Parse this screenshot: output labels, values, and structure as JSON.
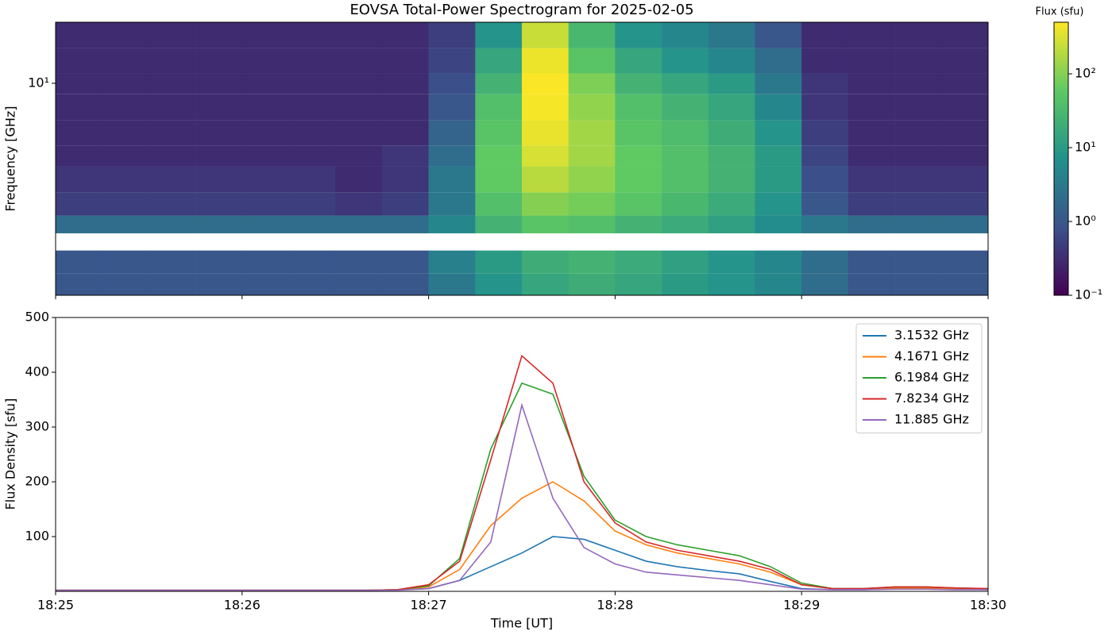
{
  "chart_data": [
    {
      "type": "heatmap",
      "title": "EOVSA Total-Power Spectrogram for 2025-02-05",
      "y_label": "Frequency [GHz]",
      "log_y": true,
      "colormap": "viridis",
      "xlim": [
        "18:25",
        "18:30"
      ],
      "ylim": [
        1.3,
        18
      ],
      "yticks": [
        {
          "value": 10,
          "label": "10¹"
        }
      ],
      "x_bins": [
        "18:25:00",
        "18:25:15",
        "18:25:30",
        "18:25:45",
        "18:26:00",
        "18:26:15",
        "18:26:30",
        "18:26:45",
        "18:27:00",
        "18:27:15",
        "18:27:30",
        "18:27:45",
        "18:28:00",
        "18:28:15",
        "18:28:30",
        "18:28:45",
        "18:29:00",
        "18:29:15",
        "18:29:30",
        "18:29:45",
        "18:30:00"
      ],
      "y_bins": [
        1.3,
        1.6,
        2.0,
        2.36,
        2.8,
        3.5,
        4.5,
        5.5,
        7,
        9,
        11,
        14,
        18
      ],
      "values": [
        [
          1,
          1,
          1,
          1,
          1,
          1,
          1,
          1,
          3,
          8,
          15,
          20,
          15,
          10,
          8,
          5,
          2,
          1,
          1,
          1
        ],
        [
          1,
          1,
          1,
          1,
          1,
          1,
          1,
          1,
          4,
          10,
          20,
          25,
          18,
          12,
          8,
          5,
          2,
          1,
          1,
          1
        ],
        [
          null,
          null,
          null,
          null,
          null,
          null,
          null,
          null,
          null,
          null,
          null,
          null,
          null,
          null,
          null,
          null,
          null,
          null,
          null,
          null
        ],
        [
          2,
          2,
          2,
          2,
          2,
          2,
          2,
          2,
          5,
          25,
          50,
          40,
          25,
          18,
          12,
          6,
          3,
          2,
          2,
          2
        ],
        [
          0.5,
          0.5,
          0.5,
          0.5,
          0.5,
          0.5,
          0.4,
          0.5,
          3,
          40,
          100,
          80,
          50,
          30,
          18,
          8,
          1,
          0.5,
          0.5,
          0.5
        ],
        [
          0.4,
          0.4,
          0.4,
          0.4,
          0.4,
          0.4,
          0.3,
          0.4,
          3,
          60,
          200,
          120,
          60,
          40,
          25,
          10,
          0.8,
          0.4,
          0.4,
          0.4
        ],
        [
          0.3,
          0.3,
          0.3,
          0.3,
          0.3,
          0.3,
          0.3,
          0.4,
          2,
          60,
          300,
          150,
          60,
          40,
          25,
          10,
          0.6,
          0.3,
          0.3,
          0.3
        ],
        [
          0.3,
          0.3,
          0.3,
          0.3,
          0.3,
          0.3,
          0.3,
          0.3,
          1.5,
          50,
          380,
          150,
          50,
          35,
          20,
          8,
          0.5,
          0.3,
          0.3,
          0.3
        ],
        [
          0.3,
          0.3,
          0.3,
          0.3,
          0.3,
          0.3,
          0.3,
          0.3,
          1,
          40,
          450,
          120,
          40,
          25,
          15,
          5,
          0.4,
          0.3,
          0.3,
          0.3
        ],
        [
          0.3,
          0.3,
          0.3,
          0.3,
          0.3,
          0.3,
          0.3,
          0.3,
          0.8,
          25,
          480,
          90,
          25,
          15,
          10,
          3,
          0.4,
          0.3,
          0.3,
          0.3
        ],
        [
          0.3,
          0.3,
          0.3,
          0.3,
          0.3,
          0.3,
          0.3,
          0.3,
          0.6,
          15,
          400,
          50,
          15,
          8,
          5,
          2,
          0.3,
          0.3,
          0.3,
          0.3
        ],
        [
          0.3,
          0.3,
          0.3,
          0.3,
          0.3,
          0.3,
          0.3,
          0.3,
          0.5,
          8,
          250,
          30,
          8,
          5,
          3,
          1,
          0.3,
          0.3,
          0.3,
          0.3
        ]
      ],
      "colorbar": {
        "label": "Flux (sfu)",
        "log": true,
        "lim": [
          0.1,
          500
        ],
        "ticks": [
          {
            "value": 0.1,
            "label": "10⁻¹"
          },
          {
            "value": 1,
            "label": "10⁰"
          },
          {
            "value": 10,
            "label": "10¹"
          },
          {
            "value": 100,
            "label": "10²"
          }
        ]
      }
    },
    {
      "type": "line",
      "x_label": "Time [UT]",
      "y_label": "Flux Density [sfu]",
      "legend": "upper right",
      "xlim": [
        "18:25",
        "18:30"
      ],
      "xticks": [
        "18:25",
        "18:26",
        "18:27",
        "18:28",
        "18:29",
        "18:30"
      ],
      "ylim": [
        0,
        500
      ],
      "yticks": [
        100,
        200,
        300,
        400,
        500
      ],
      "x": [
        "18:25:00",
        "18:25:10",
        "18:25:20",
        "18:25:30",
        "18:25:40",
        "18:25:50",
        "18:26:00",
        "18:26:10",
        "18:26:20",
        "18:26:30",
        "18:26:40",
        "18:26:50",
        "18:27:00",
        "18:27:10",
        "18:27:20",
        "18:27:30",
        "18:27:40",
        "18:27:50",
        "18:28:00",
        "18:28:10",
        "18:28:20",
        "18:28:30",
        "18:28:40",
        "18:28:50",
        "18:29:00",
        "18:29:10",
        "18:29:20",
        "18:29:30",
        "18:29:40",
        "18:29:50",
        "18:30:00"
      ],
      "series": [
        {
          "name": "3.1532 GHz",
          "color": "#1f77b4",
          "values": [
            2,
            2,
            2,
            2,
            2,
            2,
            2,
            2,
            2,
            2,
            2,
            3,
            5,
            20,
            45,
            70,
            100,
            95,
            75,
            55,
            45,
            38,
            32,
            18,
            5,
            3,
            3,
            5,
            5,
            4,
            3
          ]
        },
        {
          "name": "4.1671 GHz",
          "color": "#ff7f0e",
          "values": [
            2,
            2,
            2,
            2,
            2,
            2,
            2,
            2,
            2,
            2,
            2,
            3,
            8,
            40,
            120,
            170,
            200,
            165,
            110,
            85,
            70,
            60,
            50,
            35,
            12,
            5,
            4,
            6,
            6,
            5,
            4
          ]
        },
        {
          "name": "6.1984 GHz",
          "color": "#2ca02c",
          "values": [
            2,
            2,
            2,
            2,
            2,
            2,
            2,
            2,
            2,
            2,
            2,
            3,
            10,
            60,
            260,
            380,
            360,
            210,
            130,
            100,
            85,
            75,
            65,
            45,
            15,
            5,
            5,
            8,
            8,
            6,
            5
          ]
        },
        {
          "name": "7.8234 GHz",
          "color": "#d62728",
          "values": [
            2,
            2,
            2,
            2,
            2,
            2,
            2,
            2,
            2,
            2,
            2,
            3,
            12,
            55,
            240,
            430,
            380,
            200,
            125,
            90,
            75,
            65,
            55,
            40,
            12,
            5,
            5,
            8,
            8,
            6,
            5
          ]
        },
        {
          "name": "11.885 GHz",
          "color": "#9467bd",
          "values": [
            2,
            2,
            2,
            2,
            2,
            2,
            2,
            2,
            2,
            2,
            2,
            2,
            5,
            20,
            90,
            340,
            170,
            80,
            50,
            35,
            30,
            25,
            20,
            12,
            4,
            3,
            3,
            4,
            4,
            3,
            3
          ]
        }
      ]
    }
  ]
}
